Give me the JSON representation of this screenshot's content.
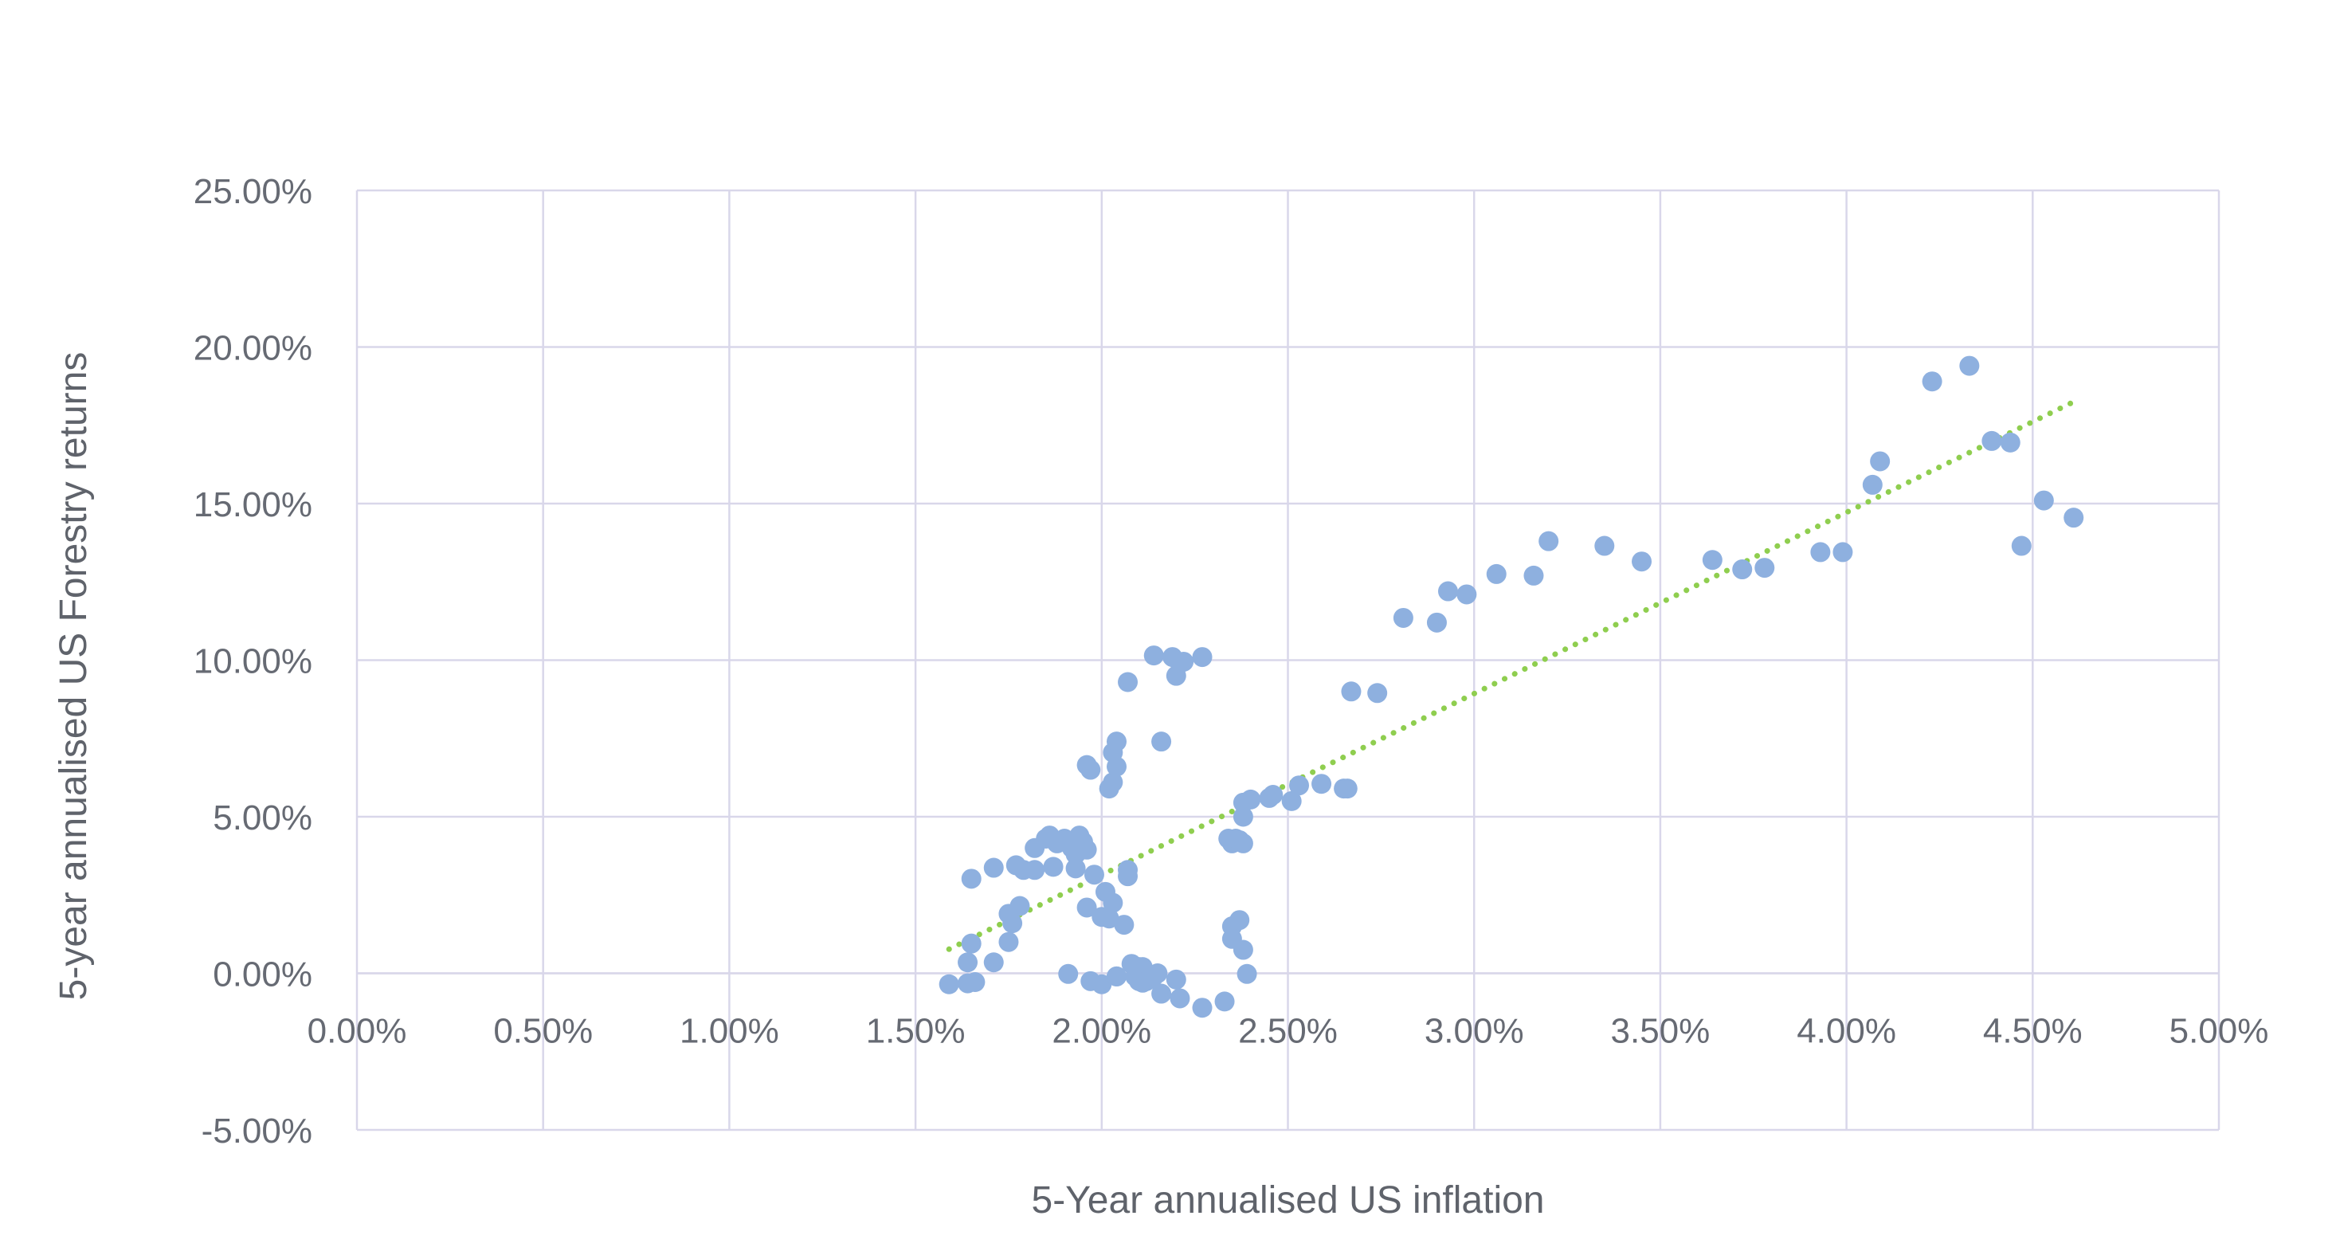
{
  "chart_data": {
    "type": "scatter",
    "title": "",
    "xlabel": "5-Year annualised US inflation",
    "ylabel": "5-year annualised US Forestry returns",
    "xlim": [
      0,
      0.05
    ],
    "ylim": [
      -0.05,
      0.25
    ],
    "x_ticks": [
      "0.00%",
      "0.50%",
      "1.00%",
      "1.50%",
      "2.00%",
      "2.50%",
      "3.00%",
      "3.50%",
      "4.00%",
      "4.50%",
      "5.00%"
    ],
    "y_ticks": [
      "25.00%",
      "20.00%",
      "15.00%",
      "10.00%",
      "5.00%",
      "0.00%",
      "-5.00%"
    ],
    "grid": true,
    "colors": {
      "points": "#8eb0df",
      "trendline": "#8fce4f",
      "grid": "#d9d7ea",
      "text": "#666a73"
    },
    "trendline": {
      "style": "dotted",
      "from": [
        0.0159,
        0.0077
      ],
      "to": [
        0.0461,
        0.1825
      ]
    },
    "points": [
      [
        0.0159,
        -0.0035
      ],
      [
        0.0164,
        -0.0032
      ],
      [
        0.0166,
        -0.0028
      ],
      [
        0.0164,
        0.0035
      ],
      [
        0.0165,
        0.0095
      ],
      [
        0.0165,
        0.0302
      ],
      [
        0.0171,
        0.0035
      ],
      [
        0.0171,
        0.0337
      ],
      [
        0.0175,
        0.019
      ],
      [
        0.0175,
        0.01
      ],
      [
        0.0176,
        0.016
      ],
      [
        0.0177,
        0.0345
      ],
      [
        0.0178,
        0.0215
      ],
      [
        0.0179,
        0.033
      ],
      [
        0.0182,
        0.033
      ],
      [
        0.0182,
        0.04
      ],
      [
        0.0185,
        0.043
      ],
      [
        0.0186,
        0.044
      ],
      [
        0.0187,
        0.034
      ],
      [
        0.0188,
        0.0415
      ],
      [
        0.019,
        0.043
      ],
      [
        0.0191,
        -0.0002
      ],
      [
        0.0192,
        0.04
      ],
      [
        0.0193,
        0.038
      ],
      [
        0.0193,
        0.0335
      ],
      [
        0.0194,
        0.044
      ],
      [
        0.0195,
        0.042
      ],
      [
        0.0196,
        0.0665
      ],
      [
        0.0196,
        0.0395
      ],
      [
        0.0196,
        0.021
      ],
      [
        0.0197,
        0.065
      ],
      [
        0.0197,
        -0.0025
      ],
      [
        0.0198,
        0.0315
      ],
      [
        0.02,
        -0.0035
      ],
      [
        0.02,
        0.018
      ],
      [
        0.0201,
        0.026
      ],
      [
        0.0202,
        0.059
      ],
      [
        0.0202,
        0.0175
      ],
      [
        0.0203,
        0.061
      ],
      [
        0.0203,
        0.0705
      ],
      [
        0.0203,
        0.0225
      ],
      [
        0.0204,
        0.066
      ],
      [
        0.0204,
        0.074
      ],
      [
        0.0204,
        -0.001
      ],
      [
        0.0204,
        -0.001
      ],
      [
        0.0206,
        0.0155
      ],
      [
        0.0207,
        0.031
      ],
      [
        0.0207,
        0.033
      ],
      [
        0.0207,
        0.093
      ],
      [
        0.0208,
        0.003
      ],
      [
        0.0209,
        -0.001
      ],
      [
        0.021,
        -0.0025
      ],
      [
        0.021,
        0.002
      ],
      [
        0.0211,
        0.002
      ],
      [
        0.0211,
        -0.003
      ],
      [
        0.0212,
        -0.0025
      ],
      [
        0.0214,
        0.1015
      ],
      [
        0.0214,
        -0.001
      ],
      [
        0.0215,
        0.0
      ],
      [
        0.0216,
        0.074
      ],
      [
        0.0216,
        -0.0065
      ],
      [
        0.0219,
        0.101
      ],
      [
        0.022,
        0.095
      ],
      [
        0.022,
        -0.002
      ],
      [
        0.0221,
        -0.008
      ],
      [
        0.0221,
        0.099
      ],
      [
        0.0222,
        0.0995
      ],
      [
        0.0227,
        0.101
      ],
      [
        0.0227,
        -0.011
      ],
      [
        0.0233,
        -0.009
      ],
      [
        0.0234,
        0.043
      ],
      [
        0.0235,
        0.0415
      ],
      [
        0.0235,
        0.015
      ],
      [
        0.0235,
        0.011
      ],
      [
        0.0236,
        0.043
      ],
      [
        0.0237,
        0.017
      ],
      [
        0.0237,
        0.0425
      ],
      [
        0.0238,
        0.0415
      ],
      [
        0.0238,
        0.0075
      ],
      [
        0.0238,
        0.0545
      ],
      [
        0.0238,
        0.05
      ],
      [
        0.0239,
        -0.0002
      ],
      [
        0.024,
        0.0555
      ],
      [
        0.0245,
        0.056
      ],
      [
        0.0246,
        0.057
      ],
      [
        0.0251,
        0.055
      ],
      [
        0.0253,
        0.06
      ],
      [
        0.0259,
        0.0605
      ],
      [
        0.0265,
        0.059
      ],
      [
        0.0266,
        0.059
      ],
      [
        0.0267,
        0.09
      ],
      [
        0.0274,
        0.0895
      ],
      [
        0.0281,
        0.1135
      ],
      [
        0.029,
        0.112
      ],
      [
        0.0293,
        0.122
      ],
      [
        0.0298,
        0.121
      ],
      [
        0.0306,
        0.1275
      ],
      [
        0.0316,
        0.127
      ],
      [
        0.032,
        0.138
      ],
      [
        0.0335,
        0.1365
      ],
      [
        0.0345,
        0.1315
      ],
      [
        0.0364,
        0.132
      ],
      [
        0.0372,
        0.129
      ],
      [
        0.0378,
        0.1295
      ],
      [
        0.0393,
        0.1345
      ],
      [
        0.0399,
        0.1345
      ],
      [
        0.0407,
        0.156
      ],
      [
        0.0409,
        0.1635
      ],
      [
        0.0423,
        0.189
      ],
      [
        0.0433,
        0.194
      ],
      [
        0.0439,
        0.17
      ],
      [
        0.0444,
        0.1695
      ],
      [
        0.0447,
        0.1365
      ],
      [
        0.0453,
        0.151
      ],
      [
        0.0461,
        0.1455
      ]
    ]
  }
}
